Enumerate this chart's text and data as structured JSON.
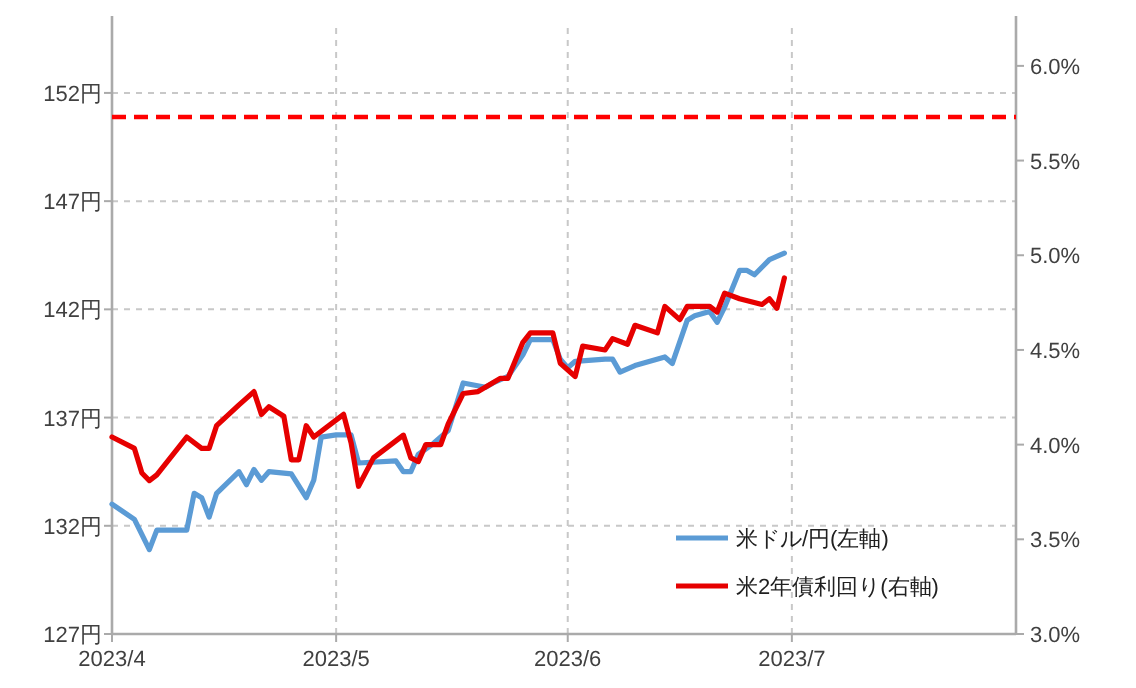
{
  "chart_data": {
    "type": "line",
    "xlim": [
      "2023-04-01",
      "2023-07-31"
    ],
    "xticks": [
      {
        "value": "2023-04-01",
        "label": "2023/4"
      },
      {
        "value": "2023-05-01",
        "label": "2023/5"
      },
      {
        "value": "2023-06-01",
        "label": "2023/6"
      },
      {
        "value": "2023-07-01",
        "label": "2023/7"
      }
    ],
    "ylim": [
      127,
      155
    ],
    "yticks": [
      {
        "value": 127,
        "label": "127円"
      },
      {
        "value": 132,
        "label": "132円"
      },
      {
        "value": 137,
        "label": "137円"
      },
      {
        "value": 142,
        "label": "142円"
      },
      {
        "value": 147,
        "label": "147円"
      },
      {
        "value": 152,
        "label": "152円"
      }
    ],
    "y2lim": [
      3.0,
      6.2
    ],
    "y2ticks": [
      {
        "value": 3.0,
        "label": "3.0%"
      },
      {
        "value": 3.5,
        "label": "3.5%"
      },
      {
        "value": 4.0,
        "label": "4.0%"
      },
      {
        "value": 4.5,
        "label": "4.5%"
      },
      {
        "value": 5.0,
        "label": "5.0%"
      },
      {
        "value": 5.5,
        "label": "5.5%"
      },
      {
        "value": 6.0,
        "label": "6.0%"
      }
    ],
    "grid": true,
    "legend": "bottom right",
    "marker": "none",
    "ref_lines": [
      {
        "axis": "y2",
        "value": 5.73,
        "color": "#ff0000",
        "line_style": "dashed"
      }
    ],
    "series": [
      {
        "name": "米ドル/円(左軸)",
        "color": "#5b9bd5",
        "x": [
          "2023-04-01",
          "2023-04-04",
          "2023-04-06",
          "2023-04-07",
          "2023-04-11",
          "2023-04-12",
          "2023-04-13",
          "2023-04-14",
          "2023-04-15",
          "2023-04-18",
          "2023-04-19",
          "2023-04-20",
          "2023-04-21",
          "2023-04-22",
          "2023-04-25",
          "2023-04-27",
          "2023-04-28",
          "2023-04-29",
          "2023-05-01",
          "2023-05-03",
          "2023-05-04",
          "2023-05-09",
          "2023-05-10",
          "2023-05-11",
          "2023-05-12",
          "2023-05-14",
          "2023-05-16",
          "2023-05-18",
          "2023-05-21",
          "2023-05-22",
          "2023-05-24",
          "2023-05-26",
          "2023-05-27",
          "2023-05-30",
          "2023-05-31",
          "2023-06-01",
          "2023-06-02",
          "2023-06-06",
          "2023-06-07",
          "2023-06-08",
          "2023-06-10",
          "2023-06-14",
          "2023-06-15",
          "2023-06-17",
          "2023-06-18",
          "2023-06-20",
          "2023-06-21",
          "2023-06-22",
          "2023-06-24",
          "2023-06-25",
          "2023-06-26",
          "2023-06-28",
          "2023-06-30"
        ],
        "values": [
          133.0,
          132.3,
          130.9,
          131.8,
          131.8,
          133.5,
          133.3,
          132.4,
          133.5,
          134.5,
          133.9,
          134.6,
          134.1,
          134.5,
          134.4,
          133.3,
          134.1,
          136.1,
          136.2,
          136.2,
          134.9,
          135.0,
          134.5,
          134.5,
          135.3,
          135.8,
          136.4,
          138.6,
          138.4,
          138.6,
          138.9,
          139.9,
          140.6,
          140.6,
          139.7,
          139.3,
          139.6,
          139.7,
          139.7,
          139.1,
          139.4,
          139.8,
          139.5,
          141.5,
          141.7,
          141.9,
          141.4,
          142.1,
          143.8,
          143.8,
          143.6,
          144.3,
          144.6
        ]
      },
      {
        "name": "米2年債利回り(右軸)",
        "color": "#e60000",
        "axis": "y2",
        "x": [
          "2023-04-01",
          "2023-04-04",
          "2023-04-05",
          "2023-04-06",
          "2023-04-07",
          "2023-04-11",
          "2023-04-13",
          "2023-04-14",
          "2023-04-15",
          "2023-04-18",
          "2023-04-20",
          "2023-04-21",
          "2023-04-22",
          "2023-04-24",
          "2023-04-25",
          "2023-04-26",
          "2023-04-27",
          "2023-04-28",
          "2023-05-02",
          "2023-05-03",
          "2023-05-04",
          "2023-05-06",
          "2023-05-10",
          "2023-05-11",
          "2023-05-12",
          "2023-05-13",
          "2023-05-15",
          "2023-05-16",
          "2023-05-18",
          "2023-05-20",
          "2023-05-23",
          "2023-05-24",
          "2023-05-26",
          "2023-05-27",
          "2023-05-30",
          "2023-05-31",
          "2023-06-02",
          "2023-06-03",
          "2023-06-06",
          "2023-06-07",
          "2023-06-09",
          "2023-06-10",
          "2023-06-13",
          "2023-06-14",
          "2023-06-16",
          "2023-06-17",
          "2023-06-20",
          "2023-06-21",
          "2023-06-22",
          "2023-06-24",
          "2023-06-27",
          "2023-06-28",
          "2023-06-29",
          "2023-06-30"
        ],
        "values": [
          4.04,
          3.98,
          3.85,
          3.81,
          3.84,
          4.04,
          3.98,
          3.98,
          4.1,
          4.21,
          4.28,
          4.16,
          4.2,
          4.15,
          3.92,
          3.92,
          4.1,
          4.04,
          4.16,
          4.01,
          3.78,
          3.93,
          4.05,
          3.93,
          3.91,
          4.0,
          4.0,
          4.11,
          4.27,
          4.28,
          4.35,
          4.35,
          4.54,
          4.59,
          4.59,
          4.43,
          4.36,
          4.52,
          4.5,
          4.56,
          4.53,
          4.63,
          4.59,
          4.73,
          4.66,
          4.73,
          4.73,
          4.7,
          4.8,
          4.77,
          4.74,
          4.77,
          4.72,
          4.88
        ]
      }
    ]
  }
}
